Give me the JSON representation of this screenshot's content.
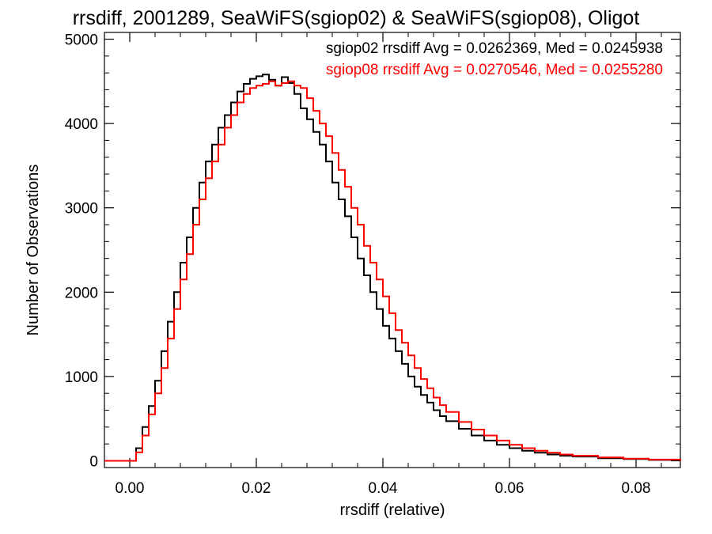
{
  "chart_data": {
    "type": "line",
    "style": "step-histogram",
    "title": "rrsdiff, 2001289, SeaWiFS(sgiop02) & SeaWiFS(sgiop08), Oligot",
    "xlabel": "rrsdiff (relative)",
    "ylabel": "Number of Observations",
    "xlim": [
      -0.004,
      0.087
    ],
    "ylim": [
      -80,
      5080
    ],
    "xticks": [
      0.0,
      0.02,
      0.04,
      0.06,
      0.08
    ],
    "xtick_labels": [
      "0.00",
      "0.02",
      "0.04",
      "0.06",
      "0.08"
    ],
    "yticks": [
      0,
      1000,
      2000,
      3000,
      4000,
      5000
    ],
    "ytick_labels": [
      "0",
      "1000",
      "2000",
      "3000",
      "4000",
      "5000"
    ],
    "grid": false,
    "legend_position": "top-right",
    "series": [
      {
        "legend": "sgiop02 rrsdiff Avg = 0.0262369, Med = 0.0245938",
        "color": "#000000",
        "x": [
          -0.004,
          -0.002,
          0.0,
          0.001,
          0.002,
          0.003,
          0.004,
          0.005,
          0.006,
          0.007,
          0.008,
          0.009,
          0.01,
          0.011,
          0.012,
          0.013,
          0.014,
          0.015,
          0.016,
          0.017,
          0.018,
          0.019,
          0.02,
          0.021,
          0.022,
          0.023,
          0.024,
          0.025,
          0.026,
          0.027,
          0.028,
          0.029,
          0.03,
          0.031,
          0.032,
          0.033,
          0.034,
          0.035,
          0.036,
          0.037,
          0.038,
          0.039,
          0.04,
          0.041,
          0.042,
          0.043,
          0.044,
          0.045,
          0.046,
          0.047,
          0.048,
          0.049,
          0.05,
          0.052,
          0.054,
          0.056,
          0.058,
          0.06,
          0.062,
          0.064,
          0.066,
          0.068,
          0.07,
          0.074,
          0.078,
          0.082,
          0.087
        ],
        "y": [
          0,
          0,
          0,
          150,
          400,
          650,
          950,
          1300,
          1650,
          2000,
          2350,
          2650,
          3000,
          3300,
          3550,
          3750,
          3950,
          4100,
          4250,
          4380,
          4470,
          4530,
          4560,
          4580,
          4520,
          4450,
          4550,
          4480,
          4350,
          4180,
          4050,
          3900,
          3750,
          3550,
          3300,
          3100,
          2900,
          2650,
          2400,
          2200,
          2000,
          1800,
          1600,
          1450,
          1300,
          1150,
          1000,
          880,
          780,
          690,
          600,
          530,
          470,
          380,
          300,
          240,
          190,
          150,
          120,
          95,
          75,
          60,
          50,
          30,
          20,
          10,
          0
        ]
      },
      {
        "legend": "sgiop08 rrsdiff Avg = 0.0270546, Med = 0.0255280",
        "color": "#ff0000",
        "x": [
          -0.004,
          -0.002,
          0.0,
          0.001,
          0.002,
          0.003,
          0.004,
          0.005,
          0.006,
          0.007,
          0.008,
          0.009,
          0.01,
          0.011,
          0.012,
          0.013,
          0.014,
          0.015,
          0.016,
          0.017,
          0.018,
          0.019,
          0.02,
          0.021,
          0.022,
          0.023,
          0.024,
          0.025,
          0.026,
          0.027,
          0.028,
          0.029,
          0.03,
          0.031,
          0.032,
          0.033,
          0.034,
          0.035,
          0.036,
          0.037,
          0.038,
          0.039,
          0.04,
          0.041,
          0.042,
          0.043,
          0.044,
          0.045,
          0.046,
          0.047,
          0.048,
          0.049,
          0.05,
          0.052,
          0.054,
          0.056,
          0.058,
          0.06,
          0.062,
          0.064,
          0.066,
          0.068,
          0.07,
          0.074,
          0.078,
          0.082,
          0.087
        ],
        "y": [
          0,
          0,
          0,
          100,
          300,
          550,
          800,
          1100,
          1450,
          1800,
          2150,
          2450,
          2800,
          3100,
          3350,
          3550,
          3750,
          3950,
          4100,
          4250,
          4350,
          4420,
          4450,
          4470,
          4500,
          4450,
          4480,
          4500,
          4450,
          4420,
          4300,
          4150,
          4000,
          3850,
          3650,
          3450,
          3250,
          3000,
          2800,
          2550,
          2350,
          2150,
          1950,
          1750,
          1550,
          1400,
          1250,
          1100,
          970,
          860,
          750,
          660,
          580,
          460,
          370,
          300,
          240,
          190,
          150,
          120,
          95,
          75,
          60,
          40,
          25,
          15,
          0
        ]
      }
    ]
  }
}
